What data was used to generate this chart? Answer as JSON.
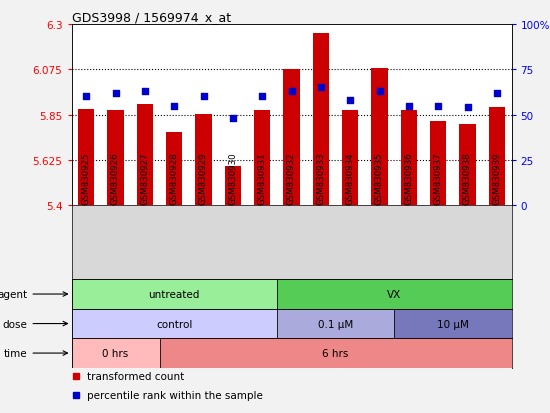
{
  "title": "GDS3998 / 1569974_x_at",
  "samples": [
    "GSM830925",
    "GSM830926",
    "GSM830927",
    "GSM830928",
    "GSM830929",
    "GSM830930",
    "GSM830931",
    "GSM830932",
    "GSM830933",
    "GSM830934",
    "GSM830935",
    "GSM830936",
    "GSM830937",
    "GSM830938",
    "GSM830939"
  ],
  "bar_values": [
    5.88,
    5.875,
    5.905,
    5.765,
    5.855,
    5.595,
    5.875,
    6.075,
    6.255,
    5.875,
    6.082,
    5.872,
    5.818,
    5.805,
    5.89
  ],
  "dot_values": [
    60,
    62,
    63,
    55,
    60,
    48,
    60,
    63,
    65,
    58,
    63,
    55,
    55,
    54,
    62
  ],
  "ylim_left": [
    5.4,
    6.3
  ],
  "ylim_right": [
    0,
    100
  ],
  "yticks_left": [
    5.4,
    5.625,
    5.85,
    6.075,
    6.3
  ],
  "yticks_right": [
    0,
    25,
    50,
    75,
    100
  ],
  "ytick_labels_left": [
    "5.4",
    "5.625",
    "5.85",
    "6.075",
    "6.3"
  ],
  "ytick_labels_right": [
    "0",
    "25",
    "50",
    "75",
    "100%"
  ],
  "hlines": [
    5.625,
    5.85,
    6.075
  ],
  "bar_color": "#CC0000",
  "dot_color": "#0000CC",
  "plot_bg": "#FFFFFF",
  "fig_bg": "#F2F2F2",
  "xtick_bg": "#D8D8D8",
  "agent_row": [
    {
      "start": 0,
      "end": 7,
      "color": "#99EE99",
      "label": "untreated"
    },
    {
      "start": 7,
      "end": 15,
      "color": "#55CC55",
      "label": "VX"
    }
  ],
  "dose_row": [
    {
      "start": 0,
      "end": 7,
      "color": "#CCCCFF",
      "label": "control"
    },
    {
      "start": 7,
      "end": 11,
      "color": "#AAAADD",
      "label": "0.1 μM"
    },
    {
      "start": 11,
      "end": 15,
      "color": "#7777BB",
      "label": "10 μM"
    }
  ],
  "time_row": [
    {
      "start": 0,
      "end": 3,
      "color": "#FFBBBB",
      "label": "0 hrs"
    },
    {
      "start": 3,
      "end": 15,
      "color": "#EE8888",
      "label": "6 hrs"
    }
  ],
  "row_label_names": [
    "agent",
    "dose",
    "time"
  ],
  "legend": [
    {
      "color": "#CC0000",
      "label": "transformed count"
    },
    {
      "color": "#0000CC",
      "label": "percentile rank within the sample"
    }
  ]
}
